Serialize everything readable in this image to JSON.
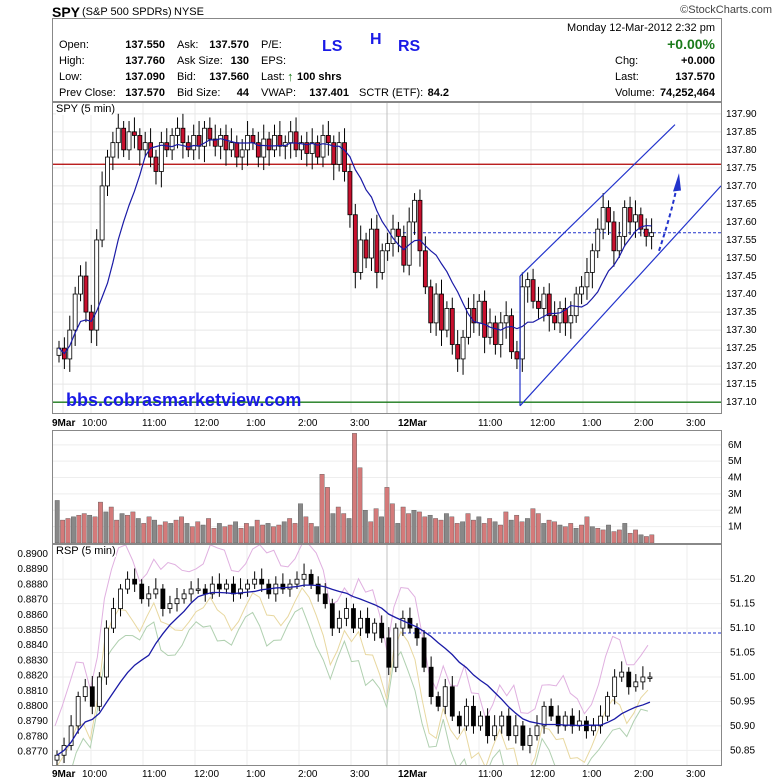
{
  "header": {
    "symbol": "SPY",
    "name": "(S&P 500 SPDRs)",
    "exchange": "NYSE",
    "logo": "©StockCharts.com",
    "datetime": "Monday  12-Mar-2012  2:32 pm",
    "chg_pct": "+0.00%"
  },
  "quote": {
    "open_label": "Open:",
    "open": "137.550",
    "high_label": "High:",
    "high": "137.760",
    "low_label": "Low:",
    "low": "137.090",
    "prev_label": "Prev Close:",
    "prev": "137.570",
    "ask_label": "Ask:",
    "ask": "137.570",
    "asksize_label": "Ask Size:",
    "asksize": "130",
    "bid_label": "Bid:",
    "bid": "137.560",
    "bidsize_label": "Bid Size:",
    "bidsize": "44",
    "pe_label": "P/E:",
    "eps_label": "EPS:",
    "last_trade_label": "Last:",
    "last_trade": "100 shrs",
    "vwap_label": "VWAP:",
    "vwap": "137.401",
    "sctr_label": "SCTR (ETF):",
    "sctr": "84.2",
    "chg_label": "Chg:",
    "chg": "+0.000",
    "last_label": "Last:",
    "last": "137.570",
    "volume_label": "Volume:",
    "volume": "74,252,464"
  },
  "annotations": {
    "ls": "LS",
    "h": "H",
    "rs": "RS",
    "url": "bbs.cobrasmarketview.com"
  },
  "colors": {
    "up": "#ffffff",
    "down": "#c8102e",
    "ma": "#1a1aa6",
    "channel": "#2233cc",
    "red_line": "#b00000",
    "green_line": "#1a7a1a",
    "vol_up": "#888888",
    "vol_down": "#d47a7a",
    "annot": "#1a1ae6"
  },
  "chart_data": [
    {
      "type": "line",
      "panel_label": "SPY (5 min)",
      "title": "",
      "yticks": [
        "137.90",
        "137.85",
        "137.80",
        "137.75",
        "137.70",
        "137.65",
        "137.60",
        "137.55",
        "137.50",
        "137.45",
        "137.40",
        "137.35",
        "137.30",
        "137.25",
        "137.20",
        "137.15",
        "137.10"
      ],
      "xticks": [
        "9Mar",
        "10:00",
        "11:00",
        "12:00",
        "1:00",
        "2:00",
        "3:00",
        "12Mar",
        "11:00",
        "12:00",
        "1:00",
        "2:00",
        "3:00"
      ],
      "ylim": [
        137.07,
        137.93
      ],
      "hlines": [
        {
          "value": 137.76,
          "color": "red"
        },
        {
          "value": 137.1,
          "color": "green"
        }
      ],
      "dotted_line": 137.57,
      "series": [
        {
          "values": [
            137.25,
            137.22,
            137.3,
            137.4,
            137.45,
            137.35,
            137.3,
            137.55,
            137.7,
            137.78,
            137.82,
            137.86,
            137.8,
            137.85,
            137.84,
            137.8,
            137.82,
            137.78,
            137.74,
            137.82,
            137.8,
            137.84,
            137.86,
            137.82,
            137.8,
            137.84,
            137.81,
            137.86,
            137.83,
            137.81,
            137.84,
            137.8,
            137.82,
            137.78,
            137.8,
            137.84,
            137.82,
            137.78,
            137.83,
            137.8,
            137.84,
            137.81,
            137.82,
            137.85,
            137.8,
            137.82,
            137.79,
            137.82,
            137.78,
            137.84,
            137.82,
            137.76,
            137.82,
            137.74,
            137.62,
            137.46,
            137.55,
            137.5,
            137.58,
            137.46,
            137.52,
            137.54,
            137.58,
            137.56,
            137.48,
            137.6,
            137.66,
            137.52,
            137.42,
            137.32,
            137.4,
            137.3,
            137.36,
            137.26,
            137.22,
            137.28,
            137.36,
            137.32,
            137.38,
            137.28,
            137.32,
            137.26,
            137.32,
            137.34,
            137.24,
            137.22,
            137.42,
            137.44,
            137.38,
            137.36,
            137.4,
            137.34,
            137.32,
            137.36,
            137.32,
            137.34,
            137.4,
            137.42,
            137.46,
            137.52,
            137.58,
            137.64,
            137.6,
            137.52,
            137.56,
            137.64,
            137.6,
            137.62,
            137.58,
            137.56,
            137.57
          ]
        }
      ]
    },
    {
      "type": "bar",
      "panel_label": "Volume",
      "title": "",
      "yticks": [
        "6M",
        "5M",
        "4M",
        "3M",
        "2M",
        "1M"
      ],
      "ylim": [
        0,
        6.6
      ],
      "values": [
        2.6,
        1.4,
        1.5,
        1.6,
        1.7,
        1.8,
        1.7,
        1.6,
        2.5,
        1.9,
        2.2,
        1.4,
        1.8,
        1.7,
        1.9,
        1.5,
        1.2,
        1.6,
        1.4,
        1.1,
        1.3,
        1.2,
        1.4,
        1.6,
        1.2,
        1.0,
        1.3,
        1.1,
        1.5,
        0.9,
        1.2,
        1.0,
        1.1,
        1.3,
        0.9,
        1.2,
        1.0,
        1.4,
        1.1,
        1.2,
        1.0,
        1.1,
        1.3,
        1.5,
        1.2,
        2.4,
        1.6,
        1.2,
        1.0,
        4.2,
        3.4,
        1.8,
        2.2,
        1.8,
        1.5,
        6.7,
        4.6,
        2.0,
        1.3,
        2.1,
        1.6,
        3.4,
        2.4,
        1.2,
        2.2,
        1.8,
        2.0,
        1.9,
        1.6,
        1.7,
        1.5,
        1.4,
        1.8,
        1.6,
        1.2,
        1.3,
        1.8,
        1.4,
        1.6,
        1.2,
        1.5,
        1.3,
        1.1,
        1.9,
        1.4,
        1.7,
        1.3,
        1.5,
        2.1,
        1.8,
        1.2,
        1.4,
        1.3,
        1.1,
        1.0,
        1.2,
        0.9,
        1.1,
        1.6,
        1.0,
        0.9,
        0.8,
        1.1,
        0.7,
        0.8,
        1.2,
        0.6,
        0.8,
        0.5,
        0.4,
        0.5
      ]
    },
    {
      "type": "line",
      "panel_label": "RSP (5 min)",
      "title": "",
      "yticks_left": [
        "0.8900",
        "0.8890",
        "0.8880",
        "0.8870",
        "0.8860",
        "0.8850",
        "0.8840",
        "0.8830",
        "0.8820",
        "0.8810",
        "0.8800",
        "0.8790",
        "0.8780",
        "0.8770"
      ],
      "yticks_right": [
        "51.20",
        "51.15",
        "51.10",
        "51.05",
        "51.00",
        "50.95",
        "50.90",
        "50.85"
      ],
      "ylim": [
        50.82,
        51.27
      ],
      "dotted_line": 51.09,
      "series": [
        {
          "values": [
            50.84,
            50.86,
            50.9,
            50.96,
            50.98,
            50.94,
            51.0,
            51.1,
            51.14,
            51.18,
            51.2,
            51.19,
            51.16,
            51.17,
            51.18,
            51.14,
            51.15,
            51.16,
            51.17,
            51.18,
            51.18,
            51.17,
            51.19,
            51.18,
            51.19,
            51.17,
            51.18,
            51.19,
            51.2,
            51.19,
            51.17,
            51.19,
            51.18,
            51.19,
            51.2,
            51.21,
            51.19,
            51.17,
            51.15,
            51.1,
            51.12,
            51.14,
            51.1,
            51.12,
            51.09,
            51.11,
            51.08,
            51.02,
            51.1,
            51.12,
            51.1,
            51.08,
            51.02,
            50.96,
            50.94,
            50.98,
            50.92,
            50.9,
            50.94,
            50.9,
            50.92,
            50.88,
            50.9,
            50.92,
            50.88,
            50.9,
            50.86,
            50.88,
            50.9,
            50.94,
            50.92,
            50.9,
            50.92,
            50.9,
            50.91,
            50.89,
            50.9,
            50.92,
            50.96,
            51.0,
            51.01,
            50.98,
            50.99,
            51.0,
            51.0
          ]
        }
      ]
    }
  ]
}
